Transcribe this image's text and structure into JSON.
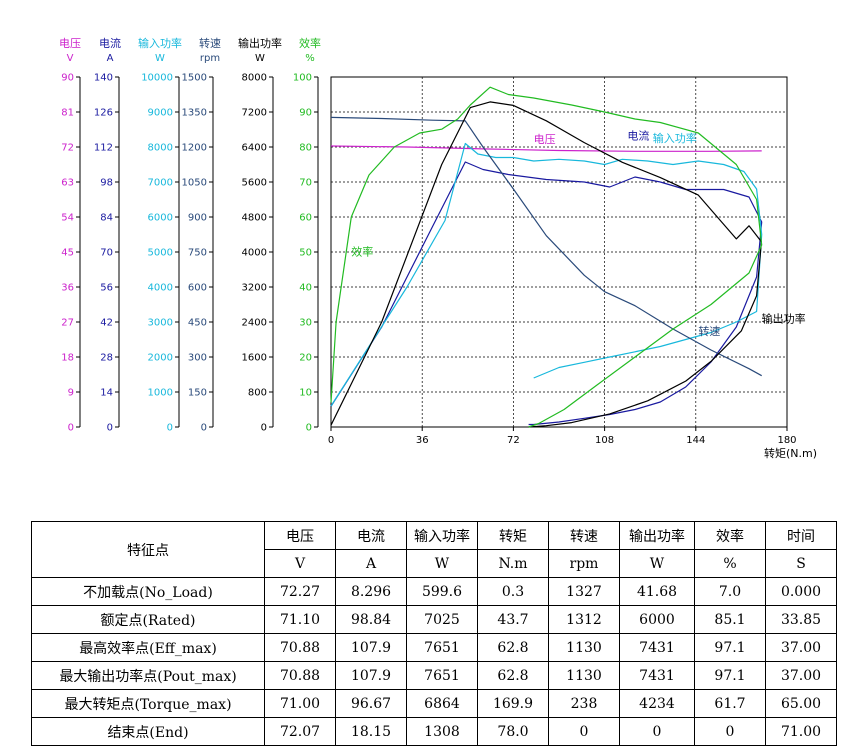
{
  "chart_data": {
    "type": "line",
    "xaxis": {
      "label": "转矩(N.m)",
      "ticks": [
        0,
        36,
        72,
        108,
        144,
        180
      ],
      "range": [
        0,
        180
      ]
    },
    "grid": true,
    "axes": [
      {
        "name": "电压",
        "unit": "V",
        "color": "#cc22cc",
        "range": [
          0,
          90
        ],
        "ticks": [
          0,
          9,
          18,
          27,
          36,
          45,
          54,
          63,
          72,
          81,
          90
        ]
      },
      {
        "name": "电流",
        "unit": "A",
        "color": "#1a1aa0",
        "range": [
          0,
          140
        ],
        "ticks": [
          0,
          14,
          28,
          42,
          56,
          70,
          84,
          98,
          112,
          126,
          140
        ]
      },
      {
        "name": "输入功率",
        "unit": "W",
        "color": "#18b8dc",
        "range": [
          0,
          10000
        ],
        "ticks": [
          0,
          1000,
          2000,
          3000,
          4000,
          5000,
          6000,
          7000,
          8000,
          9000,
          10000
        ]
      },
      {
        "name": "转速",
        "unit": "rpm",
        "color": "#2a4a7a",
        "range": [
          0,
          1500
        ],
        "ticks": [
          0,
          150,
          300,
          450,
          600,
          750,
          900,
          1050,
          1200,
          1350,
          1500
        ]
      },
      {
        "name": "输出功率",
        "unit": "W",
        "color": "#000000",
        "range": [
          0,
          8000
        ],
        "ticks": [
          0,
          800,
          1600,
          2400,
          3200,
          4000,
          4800,
          5600,
          6400,
          7200,
          8000
        ]
      },
      {
        "name": "效率",
        "unit": "%",
        "color": "#22bb22",
        "range": [
          0,
          100
        ],
        "ticks": [
          0,
          10,
          20,
          30,
          40,
          50,
          60,
          70,
          80,
          90,
          100
        ]
      }
    ],
    "series": [
      {
        "name": "电压",
        "axis": 0,
        "color": "#cc22cc",
        "label_at": [
          80,
          73
        ],
        "x": [
          0,
          30,
          60,
          90,
          120,
          150,
          170
        ],
        "y": [
          72.27,
          72.0,
          71.5,
          71.1,
          70.9,
          70.9,
          71.0
        ]
      },
      {
        "name": "电流",
        "axis": 1,
        "color": "#1a1aa0",
        "label_at": [
          117,
          115
        ],
        "x": [
          0,
          20,
          40,
          53,
          60,
          70,
          85,
          100,
          110,
          120,
          130,
          140,
          155,
          165,
          170,
          168,
          160,
          150,
          140,
          130,
          120,
          110,
          100,
          90,
          80,
          78
        ],
        "y": [
          8.3,
          40,
          80,
          106,
          103,
          101,
          99,
          98,
          96,
          100,
          98,
          95,
          95,
          92,
          82,
          60,
          40,
          26,
          16,
          10,
          7,
          5,
          3.5,
          2,
          1,
          1
        ]
      },
      {
        "name": "输入功率",
        "axis": 2,
        "color": "#18b8dc",
        "label_at": [
          127,
          8150
        ],
        "x": [
          0,
          15,
          30,
          45,
          53,
          58,
          65,
          72,
          80,
          90,
          100,
          108,
          115,
          125,
          135,
          145,
          155,
          163,
          168,
          170,
          168,
          160,
          150,
          140,
          130,
          120,
          110,
          100,
          90,
          80
        ],
        "y": [
          600,
          2300,
          4000,
          5900,
          8100,
          7800,
          7700,
          7700,
          7600,
          7650,
          7600,
          7500,
          7650,
          7600,
          7500,
          7600,
          7500,
          7300,
          6800,
          5500,
          3300,
          3000,
          2700,
          2500,
          2300,
          2150,
          2000,
          1850,
          1700,
          1400
        ]
      },
      {
        "name": "转速",
        "axis": 3,
        "color": "#2a4a7a",
        "label_at": [
          145,
          395
        ],
        "x": [
          0,
          20,
          40,
          53,
          60,
          72,
          85,
          100,
          108,
          120,
          135,
          150,
          165,
          170
        ],
        "y": [
          1327,
          1322,
          1315,
          1312,
          1200,
          1020,
          820,
          650,
          580,
          520,
          420,
          330,
          250,
          220
        ]
      },
      {
        "name": "输出功率",
        "axis": 4,
        "color": "#000000",
        "label_at": [
          170,
          2390
        ],
        "x": [
          0,
          20,
          43.7,
          55,
          62.8,
          72,
          85,
          100,
          115,
          130,
          145,
          160,
          165,
          169.9,
          168,
          162,
          150,
          140,
          125,
          110,
          95,
          85,
          78
        ],
        "y": [
          41.68,
          2400,
          6000,
          7300,
          7431,
          7350,
          7000,
          6500,
          6050,
          5700,
          5300,
          4300,
          4600,
          4234,
          3000,
          2200,
          1500,
          1050,
          600,
          300,
          100,
          30,
          0
        ]
      },
      {
        "name": "效率",
        "axis": 5,
        "color": "#22bb22",
        "label_at": [
          8,
          49
        ],
        "x": [
          0,
          2,
          8,
          15,
          25,
          35,
          43.7,
          50,
          55,
          62.8,
          70,
          80,
          95,
          108,
          120,
          130,
          145,
          160,
          168,
          170,
          165,
          150,
          135,
          120,
          105,
          92,
          82,
          78
        ],
        "y": [
          7.0,
          30,
          60,
          72,
          80,
          84,
          85.1,
          88,
          92,
          97.1,
          95,
          94,
          92,
          90,
          88,
          87,
          84,
          75,
          65,
          52,
          44,
          35,
          28,
          20,
          12,
          5,
          1,
          0
        ]
      }
    ]
  },
  "table": {
    "row_header": "特征点",
    "columns": [
      {
        "name": "电压",
        "unit": "V"
      },
      {
        "name": "电流",
        "unit": "A"
      },
      {
        "name": "输入功率",
        "unit": "W"
      },
      {
        "name": "转矩",
        "unit": "N.m"
      },
      {
        "name": "转速",
        "unit": "rpm"
      },
      {
        "name": "输出功率",
        "unit": "W"
      },
      {
        "name": "效率",
        "unit": "%"
      },
      {
        "name": "时间",
        "unit": "S"
      }
    ],
    "rows": [
      {
        "label": "不加载点(No_Load)",
        "values": [
          "72.27",
          "8.296",
          "599.6",
          "0.3",
          "1327",
          "41.68",
          "7.0",
          "0.000"
        ]
      },
      {
        "label": "额定点(Rated)",
        "values": [
          "71.10",
          "98.84",
          "7025",
          "43.7",
          "1312",
          "6000",
          "85.1",
          "33.85"
        ]
      },
      {
        "label": "最高效率点(Eff_max)",
        "values": [
          "70.88",
          "107.9",
          "7651",
          "62.8",
          "1130",
          "7431",
          "97.1",
          "37.00"
        ]
      },
      {
        "label": "最大输出功率点(Pout_max)",
        "values": [
          "70.88",
          "107.9",
          "7651",
          "62.8",
          "1130",
          "7431",
          "97.1",
          "37.00"
        ]
      },
      {
        "label": "最大转矩点(Torque_max)",
        "values": [
          "71.00",
          "96.67",
          "6864",
          "169.9",
          "238",
          "4234",
          "61.7",
          "65.00"
        ]
      },
      {
        "label": "结束点(End)",
        "values": [
          "72.07",
          "18.15",
          "1308",
          "78.0",
          "0",
          "0",
          "0",
          "71.00"
        ]
      }
    ]
  }
}
